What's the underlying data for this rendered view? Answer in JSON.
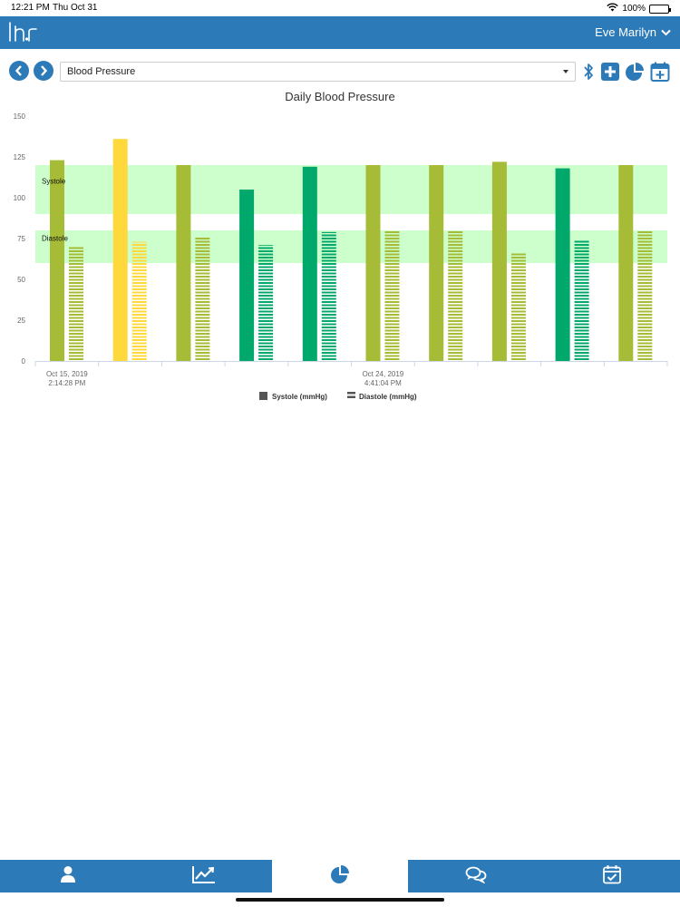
{
  "status": {
    "time": "12:21 PM",
    "date": "Thu Oct 31",
    "battery": "100%",
    "wifi_icon": "wifi-icon",
    "battery_level": 1.0
  },
  "header": {
    "logo_icon": "lhr-logo-icon",
    "user_name": "Eve Marilyn"
  },
  "toolbar": {
    "selected_metric": "Blood Pressure",
    "icons": [
      "chevron-left-icon",
      "chevron-right-icon",
      "bluetooth-icon",
      "add-icon",
      "pie-chart-icon",
      "calendar-add-icon"
    ]
  },
  "tabs": [
    {
      "icon": "person-icon",
      "active": false
    },
    {
      "icon": "trend-chart-icon",
      "active": false
    },
    {
      "icon": "pie-chart-icon",
      "active": true
    },
    {
      "icon": "chat-icon",
      "active": false
    },
    {
      "icon": "calendar-check-icon",
      "active": false
    }
  ],
  "colors": {
    "primary": "#2d7ab8",
    "band": "#ccffcc",
    "green": "#00a86b",
    "olive": "#a6bb36",
    "yellow": "#ffd93c"
  },
  "chart_data": {
    "type": "bar",
    "title": "Daily Blood Pressure",
    "ylim": [
      0,
      150
    ],
    "y_ticks": [
      0,
      25,
      50,
      75,
      100,
      125,
      150
    ],
    "x_labels": [
      {
        "index": 0,
        "line1": "Oct 15, 2019",
        "line2": "2:14:28 PM"
      },
      {
        "index": 5,
        "line1": "Oct 24, 2019",
        "line2": "4:41:04 PM"
      }
    ],
    "bands": [
      {
        "label": "Systole",
        "from": 90,
        "to": 120
      },
      {
        "label": "Diastole",
        "from": 60,
        "to": 80
      }
    ],
    "series": [
      {
        "name": "Systole (mmHg)",
        "style": "solid",
        "values": [
          123,
          136,
          120,
          105,
          119,
          120,
          120,
          122,
          118,
          120
        ],
        "colors": [
          "#a6bb36",
          "#ffd93c",
          "#a6bb36",
          "#00a86b",
          "#00a86b",
          "#a6bb36",
          "#a6bb36",
          "#a6bb36",
          "#00a86b",
          "#a6bb36"
        ]
      },
      {
        "name": "Diastole (mmHg)",
        "style": "striped",
        "values": [
          70,
          73,
          76,
          71,
          79,
          80,
          80,
          66,
          74,
          80
        ],
        "colors": [
          "#a6bb36",
          "#ffd93c",
          "#a6bb36",
          "#00a86b",
          "#00a86b",
          "#a6bb36",
          "#a6bb36",
          "#a6bb36",
          "#00a86b",
          "#a6bb36"
        ]
      }
    ],
    "legend_position": "bottom"
  }
}
